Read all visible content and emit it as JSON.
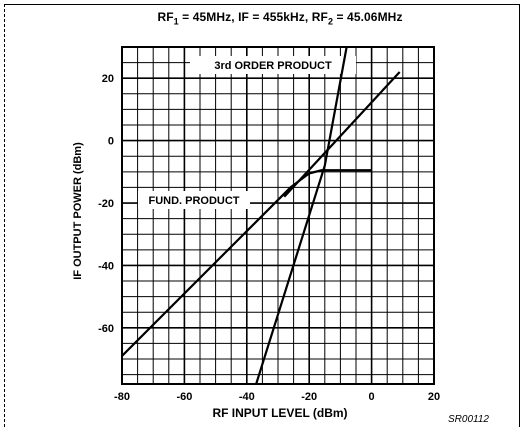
{
  "chart_data": {
    "type": "line",
    "title_parts": {
      "rf1_pre": "RF",
      "rf1_sub": "1",
      "middle": " = 45MHz, IF = 455kHz, RF",
      "rf2_sub": "2",
      "rf2_post": " = 45.06MHz"
    },
    "xlabel": "RF INPUT LEVEL (dBm)",
    "ylabel": "IF OUTPUT POWER (dBm)",
    "xlim": [
      -80,
      20
    ],
    "ylim": [
      -78,
      30
    ],
    "x_ticks": [
      -80,
      -60,
      -40,
      -20,
      0,
      20
    ],
    "y_ticks": [
      20,
      0,
      -20,
      -40,
      -60
    ],
    "grid": true,
    "series": [
      {
        "name": "FUND. PRODUCT",
        "x": [
          -80,
          -26,
          -20,
          -16,
          0
        ],
        "y": [
          -69,
          -15,
          -10.5,
          -9.5,
          -9.5
        ]
      },
      {
        "name": "3rd ORDER PRODUCT",
        "x": [
          -37,
          -15,
          -8
        ],
        "y": [
          -78,
          -8,
          30
        ]
      },
      {
        "name": "",
        "x": [
          -28,
          9
        ],
        "y": [
          -18,
          22
        ]
      }
    ],
    "annotations": [
      "3rd ORDER PRODUCT",
      "FUND. PRODUCT"
    ],
    "figure_code": "SR00112"
  }
}
